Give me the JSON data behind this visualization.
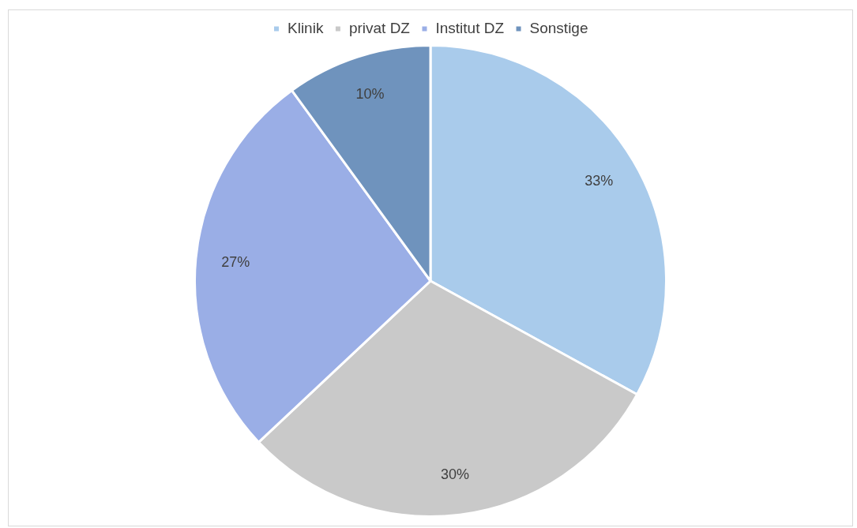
{
  "chart_data": {
    "type": "pie",
    "categories": [
      "Klinik",
      "privat DZ",
      "Institut DZ",
      "Sonstige"
    ],
    "values": [
      33,
      30,
      27,
      10
    ],
    "colors": [
      "#a9cbeb",
      "#c9c9c9",
      "#9aaee6",
      "#6f93bd"
    ],
    "value_labels": [
      "33%",
      "30%",
      "27%",
      "10%"
    ],
    "legend": "top"
  }
}
